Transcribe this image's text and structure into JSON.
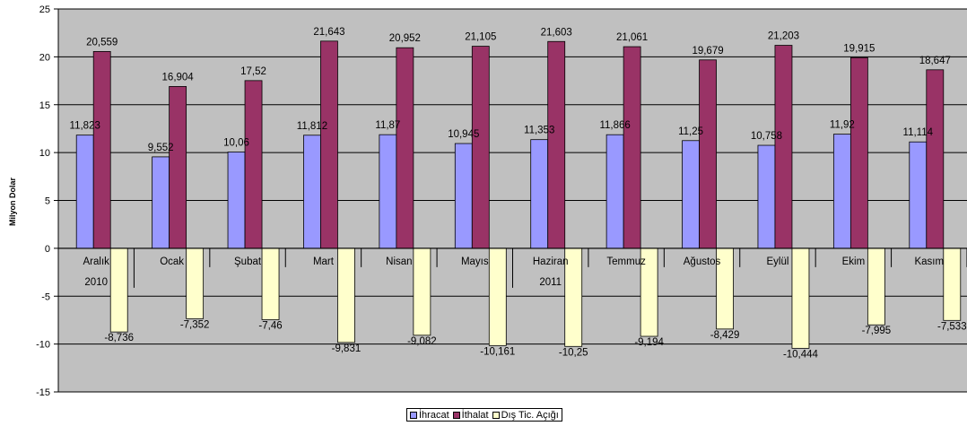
{
  "chart_data": {
    "type": "bar",
    "title": "",
    "xlabel": "",
    "ylabel": "Milyon Dolar",
    "ylim": [
      -15,
      25
    ],
    "yticks": [
      -15,
      -10,
      -5,
      0,
      5,
      10,
      15,
      20,
      25
    ],
    "grid": true,
    "legend": "bottom",
    "categories": [
      "Aralık",
      "Ocak",
      "Şubat",
      "Mart",
      "Nisan",
      "Mayıs",
      "Haziran",
      "Temmuz",
      "Ağustos",
      "Eylül",
      "Ekim",
      "Kasım"
    ],
    "year_labels": [
      {
        "category": "Aralık",
        "text": "2010"
      },
      {
        "category": "Haziran",
        "text": "2011"
      }
    ],
    "series": [
      {
        "name": "İhracat",
        "color": "#9999ff",
        "values": [
          11.823,
          9.552,
          10.06,
          11.812,
          11.87,
          10.945,
          11.353,
          11.866,
          11.25,
          10.758,
          11.92,
          11.114
        ],
        "labels": [
          "11,823",
          "9,552",
          "10,06",
          "11,812",
          "11,87",
          "10,945",
          "11,353",
          "11,866",
          "11,25",
          "10,758",
          "11,92",
          "11,114"
        ]
      },
      {
        "name": "İthalat",
        "color": "#993366",
        "values": [
          20.559,
          16.904,
          17.52,
          21.643,
          20.952,
          21.105,
          21.603,
          21.061,
          19.679,
          21.203,
          19.915,
          18.647
        ],
        "labels": [
          "20,559",
          "16,904",
          "17,52",
          "21,643",
          "20,952",
          "21,105",
          "21,603",
          "21,061",
          "19,679",
          "21,203",
          "19,915",
          "18,647"
        ]
      },
      {
        "name": "Dış Tic. Açığı",
        "color": "#ffffcc",
        "values": [
          -8.736,
          -7.352,
          -7.46,
          -9.831,
          -9.082,
          -10.161,
          -10.25,
          -9.194,
          -8.429,
          -10.444,
          -7.995,
          -7.533
        ],
        "labels": [
          "-8,736",
          "-7,352",
          "-7,46",
          "-9,831",
          "-9,082",
          "-10,161",
          "-10,25",
          "-9,194",
          "-8,429",
          "-10,444",
          "-7,995",
          "-7,533"
        ]
      }
    ],
    "colors": {
      "plot_background": "#c0c0c0",
      "gridline": "#000000"
    }
  }
}
